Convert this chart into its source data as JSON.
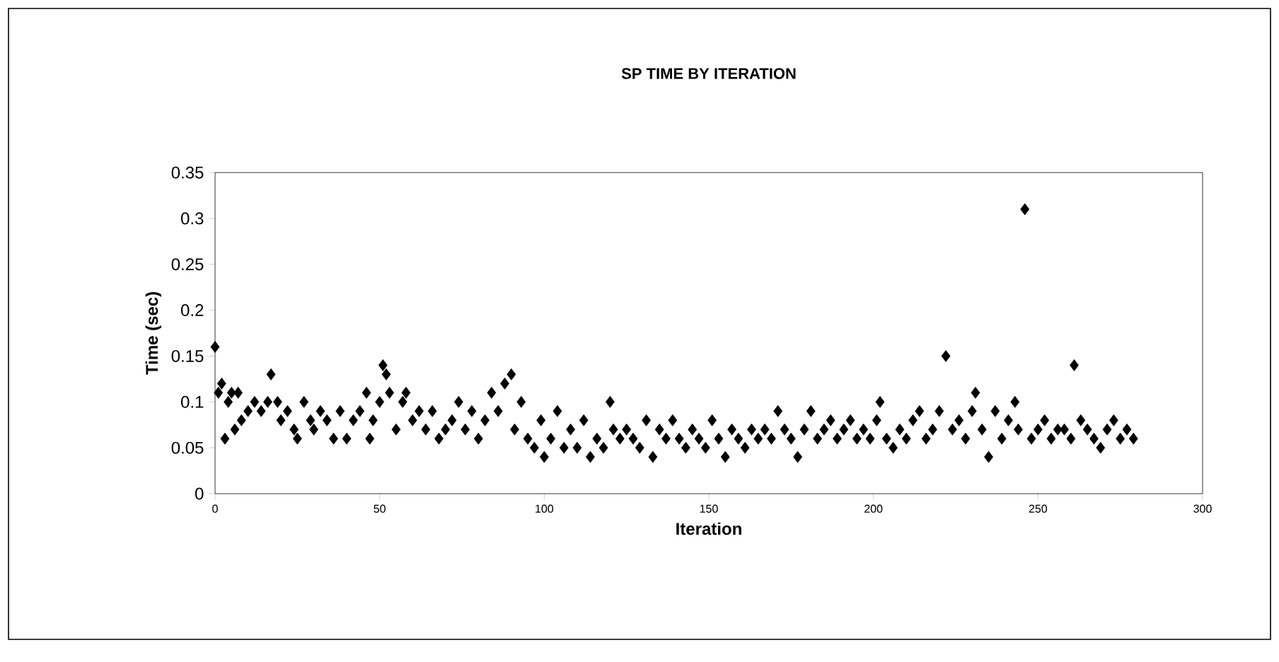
{
  "chart_data": {
    "type": "scatter",
    "title": "SP TIME BY ITERATION",
    "xlabel": "Iteration",
    "ylabel": "Time (sec)",
    "xlim": [
      0,
      300
    ],
    "xticks": [
      0,
      50,
      100,
      150,
      200,
      250,
      300
    ],
    "ylim": [
      0,
      0.35
    ],
    "yticks": [
      0,
      0.05,
      0.1,
      0.15,
      0.2,
      0.25,
      0.3,
      0.35
    ],
    "marker": "diamond",
    "grid": false,
    "series": [
      {
        "color": "#000000",
        "x": [
          0,
          1,
          2,
          3,
          4,
          5,
          6,
          7,
          8,
          10,
          12,
          14,
          16,
          17,
          19,
          20,
          22,
          24,
          25,
          27,
          29,
          30,
          32,
          34,
          36,
          38,
          40,
          42,
          44,
          46,
          47,
          48,
          50,
          51,
          52,
          53,
          55,
          57,
          58,
          60,
          62,
          64,
          66,
          68,
          70,
          72,
          74,
          76,
          78,
          80,
          82,
          84,
          86,
          88,
          90,
          91,
          93,
          95,
          97,
          99,
          100,
          102,
          104,
          106,
          108,
          110,
          112,
          114,
          116,
          118,
          120,
          121,
          123,
          125,
          127,
          129,
          131,
          133,
          135,
          137,
          139,
          141,
          143,
          145,
          147,
          149,
          151,
          153,
          155,
          157,
          159,
          161,
          163,
          165,
          167,
          169,
          171,
          173,
          175,
          177,
          179,
          181,
          183,
          185,
          187,
          189,
          191,
          193,
          195,
          197,
          199,
          201,
          202,
          204,
          206,
          208,
          210,
          212,
          214,
          216,
          218,
          220,
          222,
          224,
          226,
          228,
          230,
          231,
          233,
          235,
          237,
          239,
          241,
          243,
          244,
          246,
          248,
          250,
          252,
          254,
          256,
          258,
          260,
          261,
          263,
          265,
          267,
          269,
          271,
          273,
          275,
          277,
          279
        ],
        "values": [
          0.16,
          0.11,
          0.12,
          0.06,
          0.1,
          0.11,
          0.07,
          0.11,
          0.08,
          0.09,
          0.1,
          0.09,
          0.1,
          0.13,
          0.1,
          0.08,
          0.09,
          0.07,
          0.06,
          0.1,
          0.08,
          0.07,
          0.09,
          0.08,
          0.06,
          0.09,
          0.06,
          0.08,
          0.09,
          0.11,
          0.06,
          0.08,
          0.1,
          0.14,
          0.13,
          0.11,
          0.07,
          0.1,
          0.11,
          0.08,
          0.09,
          0.07,
          0.09,
          0.06,
          0.07,
          0.08,
          0.1,
          0.07,
          0.09,
          0.06,
          0.08,
          0.11,
          0.09,
          0.12,
          0.13,
          0.07,
          0.1,
          0.06,
          0.05,
          0.08,
          0.04,
          0.06,
          0.09,
          0.05,
          0.07,
          0.05,
          0.08,
          0.04,
          0.06,
          0.05,
          0.1,
          0.07,
          0.06,
          0.07,
          0.06,
          0.05,
          0.08,
          0.04,
          0.07,
          0.06,
          0.08,
          0.06,
          0.05,
          0.07,
          0.06,
          0.05,
          0.08,
          0.06,
          0.04,
          0.07,
          0.06,
          0.05,
          0.07,
          0.06,
          0.07,
          0.06,
          0.09,
          0.07,
          0.06,
          0.04,
          0.07,
          0.09,
          0.06,
          0.07,
          0.08,
          0.06,
          0.07,
          0.08,
          0.06,
          0.07,
          0.06,
          0.08,
          0.1,
          0.06,
          0.05,
          0.07,
          0.06,
          0.08,
          0.09,
          0.06,
          0.07,
          0.09,
          0.15,
          0.07,
          0.08,
          0.06,
          0.09,
          0.11,
          0.07,
          0.04,
          0.09,
          0.06,
          0.08,
          0.1,
          0.07,
          0.31,
          0.06,
          0.07,
          0.08,
          0.06,
          0.07,
          0.07,
          0.06,
          0.14,
          0.08,
          0.07,
          0.06,
          0.05,
          0.07,
          0.08,
          0.06,
          0.07,
          0.06
        ]
      }
    ]
  }
}
